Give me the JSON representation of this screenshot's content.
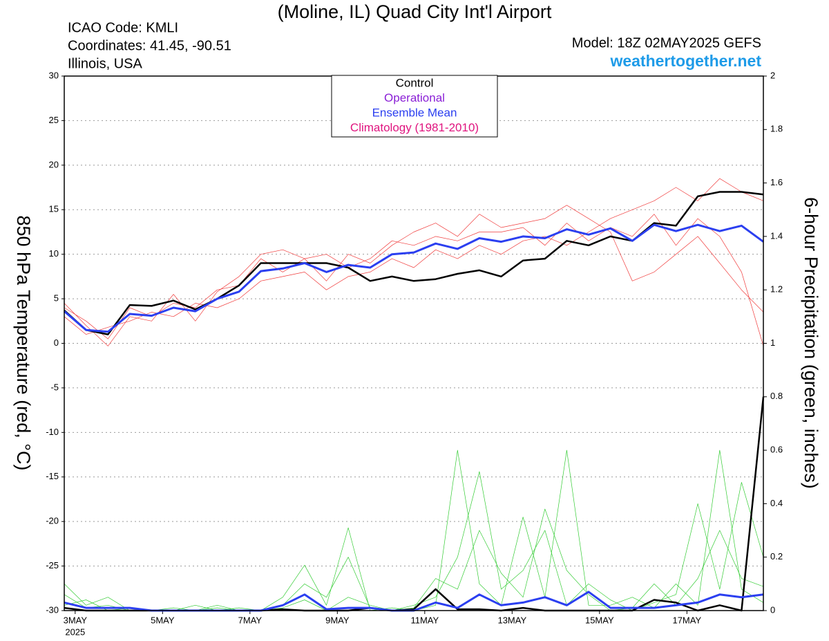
{
  "chart_data": {
    "type": "line",
    "title": "(Moline, IL) Quad City Int'l Airport",
    "info_left": [
      "ICAO Code: KMLI",
      "Coordinates: 41.45, -90.51",
      "Illinois, USA"
    ],
    "model": "Model: 18Z 02MAY2025 GEFS",
    "site": "weathertogether.net",
    "y_label": "850 hPa Temperature (red, °C)",
    "y2_label": "6-hour Precipitation (green, inches)",
    "legend": [
      {
        "name": "Control",
        "color": "#000000"
      },
      {
        "name": "Operational",
        "color": "#8a1fd6"
      },
      {
        "name": "Ensemble Mean",
        "color": "#2b3ff0"
      },
      {
        "name": "Climatology (1981-2010)",
        "color": "#e0147f"
      }
    ],
    "x": [
      2.75,
      3.25,
      3.75,
      4.25,
      4.75,
      5.25,
      5.75,
      6.25,
      6.75,
      7.25,
      7.75,
      8.25,
      8.75,
      9.25,
      9.75,
      10.25,
      10.75,
      11.25,
      11.75,
      12.25,
      12.75,
      13.25,
      13.75,
      14.25,
      14.75,
      15.25,
      15.75,
      16.25,
      16.75,
      17.25,
      17.75,
      18.25,
      18.75
    ],
    "xlim": [
      2.75,
      18.75
    ],
    "xticks": [
      {
        "value": 3,
        "label": "3MAY"
      },
      {
        "value": 5,
        "label": "5MAY"
      },
      {
        "value": 7,
        "label": "7MAY"
      },
      {
        "value": 9,
        "label": "9MAY"
      },
      {
        "value": 11,
        "label": "11MAY"
      },
      {
        "value": 13,
        "label": "13MAY"
      },
      {
        "value": 15,
        "label": "15MAY"
      },
      {
        "value": 17,
        "label": "17MAY"
      }
    ],
    "year_label": "2025",
    "ylim": [
      -30,
      30
    ],
    "yticks": [
      -30,
      -25,
      -20,
      -15,
      -10,
      -5,
      0,
      5,
      10,
      15,
      20,
      25,
      30
    ],
    "y2lim": [
      0,
      2
    ],
    "y2ticks": [
      0,
      0.2,
      0.4,
      0.6,
      0.8,
      1,
      1.2,
      1.4,
      1.6,
      1.8,
      2
    ],
    "grid": true,
    "series": [
      {
        "color": "#f03c3c",
        "width": 0.7,
        "values": [
          4.5,
          2.0,
          -0.3,
          3.0,
          2.5,
          5.5,
          2.5,
          5.8,
          7.5,
          10.0,
          10.5,
          9.5,
          7.0,
          10.0,
          9.0,
          11.0,
          12.5,
          13.5,
          12.0,
          14.5,
          13.0,
          13.5,
          14.0,
          15.5,
          14.0,
          12.5,
          7.0,
          8.0,
          10.0,
          12.0,
          9.0,
          6.0,
          3.5
        ]
      },
      {
        "color": "#f03c3c",
        "width": 0.7,
        "values": [
          3.0,
          1.0,
          1.8,
          2.5,
          3.5,
          3.0,
          4.5,
          4.0,
          5.0,
          7.0,
          7.5,
          8.0,
          6.0,
          7.5,
          8.0,
          9.5,
          8.5,
          10.5,
          9.5,
          11.0,
          10.0,
          11.5,
          12.0,
          11.0,
          12.5,
          14.0,
          15.0,
          16.0,
          17.5,
          16.0,
          18.5,
          17.0,
          16.0
        ]
      },
      {
        "color": "#f03c3c",
        "width": 0.7,
        "values": [
          4.0,
          2.5,
          0.5,
          4.0,
          3.0,
          4.5,
          4.0,
          6.0,
          6.5,
          9.5,
          8.0,
          9.5,
          10.0,
          8.5,
          9.5,
          11.5,
          11.0,
          12.0,
          11.5,
          12.5,
          12.5,
          13.0,
          11.0,
          13.5,
          11.5,
          13.0,
          12.0,
          14.5,
          11.0,
          14.0,
          12.0,
          8.0,
          -0.3
        ]
      },
      {
        "color": "#33cc33",
        "width": 0.7,
        "axis": "y2",
        "values": [
          0.1,
          0.02,
          0.05,
          0,
          0,
          0.01,
          0,
          0.02,
          0,
          0,
          0.05,
          0.17,
          0.02,
          0.31,
          0,
          0.01,
          0,
          0.02,
          0.6,
          0.1,
          0.02,
          0.35,
          0.05,
          0.6,
          0.02,
          0.02,
          0.05,
          0.01,
          0.1,
          0.02,
          0.6,
          0.08,
          0.03
        ]
      },
      {
        "color": "#33cc33",
        "width": 0.7,
        "axis": "y2",
        "values": [
          0.06,
          0.01,
          0.02,
          0,
          0,
          0,
          0.02,
          0,
          0.01,
          0,
          0.02,
          0.1,
          0.05,
          0.2,
          0.01,
          0,
          0.02,
          0.05,
          0.2,
          0.52,
          0.08,
          0.15,
          0.3,
          0.02,
          0.1,
          0.04,
          0,
          0.03,
          0.06,
          0.4,
          0.08,
          0.48,
          0.2
        ]
      },
      {
        "color": "#33cc33",
        "width": 0.7,
        "axis": "y2",
        "values": [
          0.02,
          0.04,
          0,
          0.01,
          0,
          0,
          0,
          0.01,
          0,
          0,
          0.01,
          0.04,
          0,
          0.05,
          0.02,
          0,
          0.01,
          0.12,
          0.08,
          0.3,
          0.14,
          0.05,
          0.38,
          0.15,
          0.06,
          0,
          0.01,
          0.1,
          0.02,
          0.12,
          0.3,
          0.12,
          0.09
        ]
      },
      {
        "color": "#000000",
        "width": 2.5,
        "values": [
          3.7,
          1.5,
          1.0,
          4.3,
          4.2,
          4.8,
          3.8,
          5.0,
          6.5,
          9.0,
          9.0,
          9.0,
          9.0,
          8.5,
          7.0,
          7.5,
          7.0,
          7.2,
          7.8,
          8.2,
          7.5,
          9.3,
          9.5,
          11.5,
          11.0,
          12.0,
          11.5,
          13.5,
          13.2,
          16.5,
          17.0,
          17.0,
          16.7
        ]
      },
      {
        "color": "#2b3ff0",
        "width": 3,
        "values": [
          3.6,
          1.5,
          1.3,
          3.3,
          3.1,
          4.0,
          3.6,
          5.0,
          5.8,
          8.1,
          8.4,
          9.0,
          8.0,
          8.8,
          8.5,
          10.0,
          10.2,
          11.2,
          10.6,
          11.8,
          11.4,
          12.0,
          11.8,
          12.8,
          12.2,
          12.9,
          11.5,
          13.3,
          12.6,
          13.3,
          12.6,
          13.2,
          11.4
        ]
      },
      {
        "color": "#000000",
        "width": 2.5,
        "axis": "y2",
        "values": [
          0.01,
          0,
          0,
          0,
          0,
          0,
          0,
          0,
          0,
          0,
          0.005,
          0,
          0,
          0,
          0.01,
          0,
          0.005,
          0.08,
          0.005,
          0.005,
          0,
          0.01,
          0,
          0,
          0,
          0,
          0,
          0.04,
          0.03,
          0,
          0.02,
          0,
          0.8
        ]
      },
      {
        "color": "#2b3ff0",
        "width": 3,
        "axis": "y2",
        "values": [
          0.03,
          0.01,
          0.01,
          0.01,
          0,
          0,
          0,
          0,
          0,
          0,
          0.02,
          0.06,
          0.005,
          0.01,
          0.01,
          0,
          0,
          0.03,
          0.01,
          0.06,
          0.02,
          0.03,
          0.05,
          0.02,
          0.07,
          0.01,
          0.01,
          0.01,
          0.02,
          0.03,
          0.06,
          0.05,
          0.06
        ]
      }
    ]
  }
}
